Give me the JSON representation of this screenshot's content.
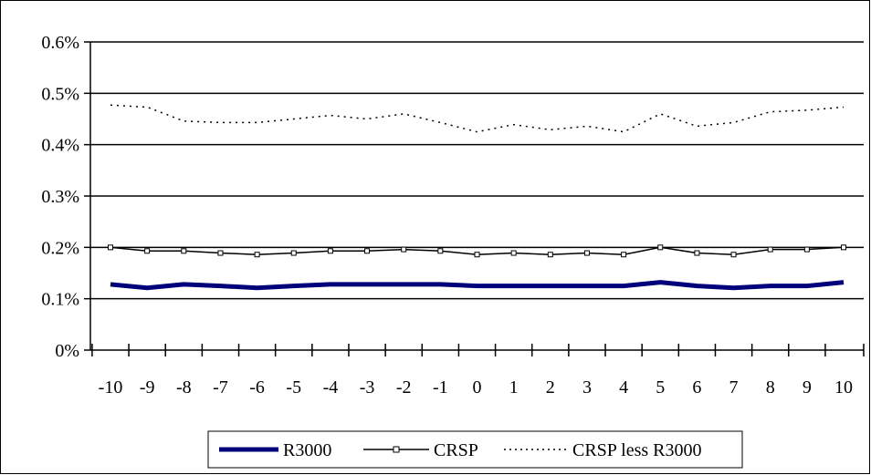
{
  "chart_data": {
    "type": "line",
    "title": "",
    "xlabel": "",
    "ylabel": "",
    "x": [
      -10,
      -9,
      -8,
      -7,
      -6,
      -5,
      -4,
      -3,
      -2,
      -1,
      0,
      1,
      2,
      3,
      4,
      5,
      6,
      7,
      8,
      9,
      10
    ],
    "x_tick_labels": [
      "-10",
      "-9",
      "-8",
      "-7",
      "-6",
      "-5",
      "-4",
      "-3",
      "-2",
      "-1",
      "0",
      "1",
      "2",
      "3",
      "4",
      "5",
      "6",
      "7",
      "8",
      "9",
      "10"
    ],
    "y_tick_labels": [
      "0%",
      "0.1%",
      "0.2%",
      "0.3%",
      "0.4%",
      "0.5%",
      "0.6%"
    ],
    "ylim": [
      0,
      0.6
    ],
    "y_unit": "percent",
    "grid": "horizontal",
    "legend_position": "bottom",
    "series": [
      {
        "name": "R3000",
        "color": "#00007a",
        "style": "thick-solid",
        "values": [
          0.128,
          0.121,
          0.128,
          0.125,
          0.121,
          0.125,
          0.128,
          0.128,
          0.128,
          0.128,
          0.125,
          0.125,
          0.125,
          0.125,
          0.125,
          0.132,
          0.125,
          0.121,
          0.125,
          0.125,
          0.132
        ]
      },
      {
        "name": "CRSP",
        "color": "#000000",
        "style": "solid-with-markers",
        "values": [
          0.2,
          0.193,
          0.193,
          0.189,
          0.186,
          0.189,
          0.193,
          0.193,
          0.196,
          0.193,
          0.186,
          0.189,
          0.186,
          0.189,
          0.186,
          0.2,
          0.189,
          0.186,
          0.196,
          0.196,
          0.2
        ]
      },
      {
        "name": "CRSP less R3000",
        "color": "#000000",
        "style": "dotted",
        "values": [
          0.477,
          0.473,
          0.446,
          0.443,
          0.443,
          0.45,
          0.457,
          0.45,
          0.46,
          0.443,
          0.425,
          0.439,
          0.429,
          0.436,
          0.425,
          0.46,
          0.436,
          0.443,
          0.464,
          0.467,
          0.473
        ]
      }
    ]
  }
}
